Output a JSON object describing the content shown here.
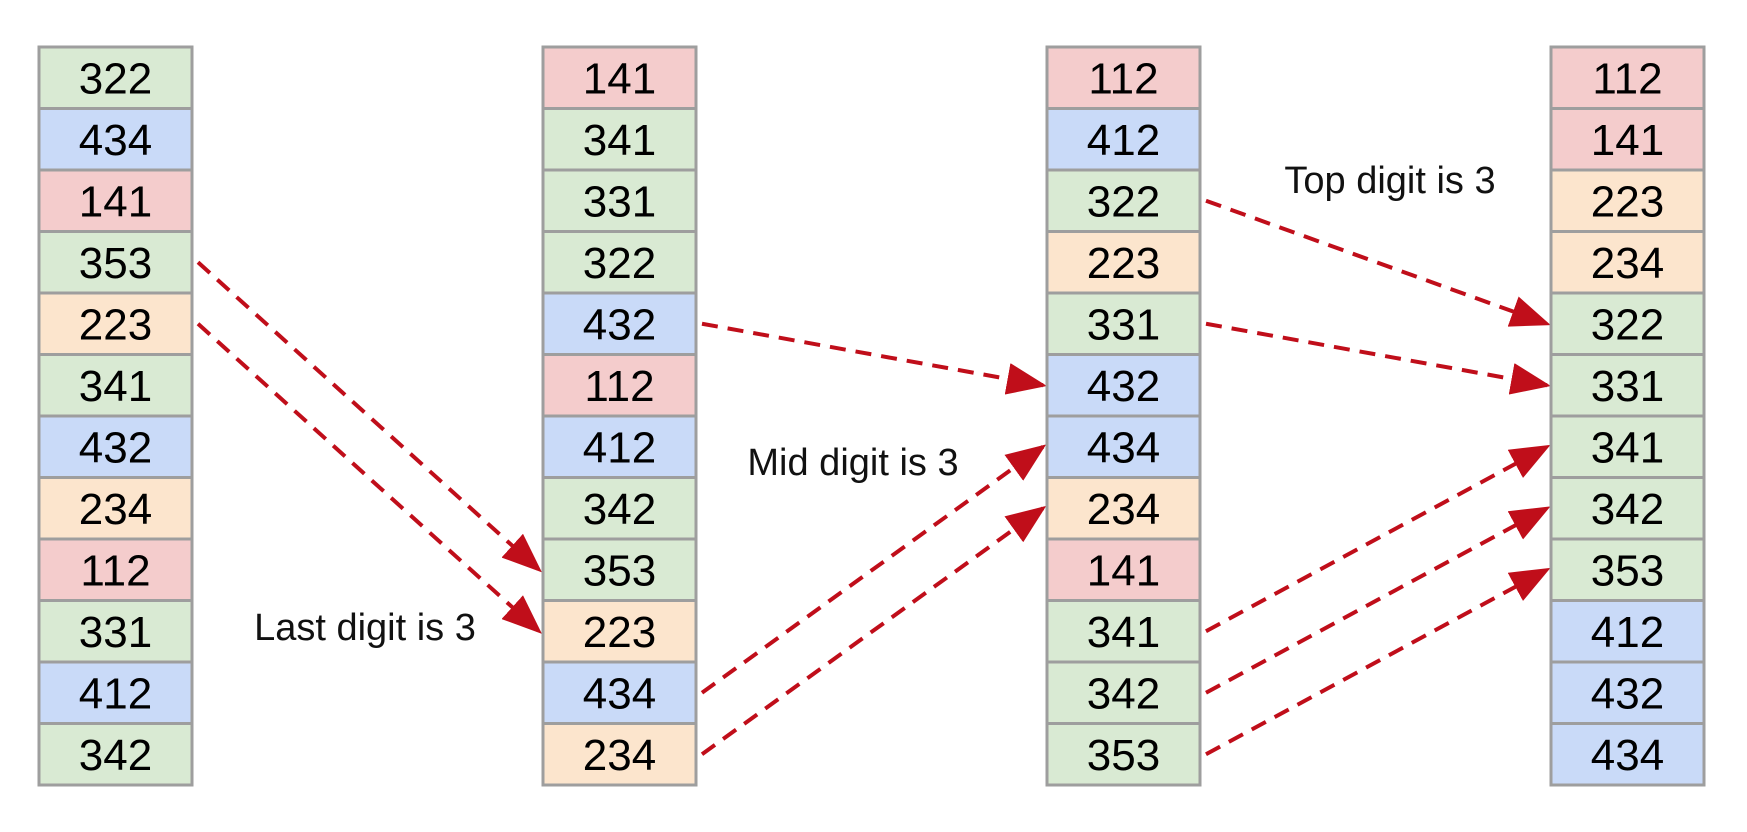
{
  "colors": {
    "green": "#d9ead3",
    "blue": "#c9daf8",
    "red": "#f4cccc",
    "orange": "#fce5cd",
    "border": "#9e9e9e",
    "arrow": "#c00e1a"
  },
  "columns": [
    {
      "name": "unsorted",
      "cells": [
        {
          "value": "322",
          "color": "green"
        },
        {
          "value": "434",
          "color": "blue"
        },
        {
          "value": "141",
          "color": "red"
        },
        {
          "value": "353",
          "color": "green"
        },
        {
          "value": "223",
          "color": "orange"
        },
        {
          "value": "341",
          "color": "green"
        },
        {
          "value": "432",
          "color": "blue"
        },
        {
          "value": "234",
          "color": "orange"
        },
        {
          "value": "112",
          "color": "red"
        },
        {
          "value": "331",
          "color": "green"
        },
        {
          "value": "412",
          "color": "blue"
        },
        {
          "value": "342",
          "color": "green"
        }
      ]
    },
    {
      "name": "after-last-digit",
      "cells": [
        {
          "value": "141",
          "color": "red"
        },
        {
          "value": "341",
          "color": "green"
        },
        {
          "value": "331",
          "color": "green"
        },
        {
          "value": "322",
          "color": "green"
        },
        {
          "value": "432",
          "color": "blue"
        },
        {
          "value": "112",
          "color": "red"
        },
        {
          "value": "412",
          "color": "blue"
        },
        {
          "value": "342",
          "color": "green"
        },
        {
          "value": "353",
          "color": "green"
        },
        {
          "value": "223",
          "color": "orange"
        },
        {
          "value": "434",
          "color": "blue"
        },
        {
          "value": "234",
          "color": "orange"
        }
      ]
    },
    {
      "name": "after-mid-digit",
      "cells": [
        {
          "value": "112",
          "color": "red"
        },
        {
          "value": "412",
          "color": "blue"
        },
        {
          "value": "322",
          "color": "green"
        },
        {
          "value": "223",
          "color": "orange"
        },
        {
          "value": "331",
          "color": "green"
        },
        {
          "value": "432",
          "color": "blue"
        },
        {
          "value": "434",
          "color": "blue"
        },
        {
          "value": "234",
          "color": "orange"
        },
        {
          "value": "141",
          "color": "red"
        },
        {
          "value": "341",
          "color": "green"
        },
        {
          "value": "342",
          "color": "green"
        },
        {
          "value": "353",
          "color": "green"
        }
      ]
    },
    {
      "name": "after-top-digit",
      "cells": [
        {
          "value": "112",
          "color": "red"
        },
        {
          "value": "141",
          "color": "red"
        },
        {
          "value": "223",
          "color": "orange"
        },
        {
          "value": "234",
          "color": "orange"
        },
        {
          "value": "322",
          "color": "green"
        },
        {
          "value": "331",
          "color": "green"
        },
        {
          "value": "341",
          "color": "green"
        },
        {
          "value": "342",
          "color": "green"
        },
        {
          "value": "353",
          "color": "green"
        },
        {
          "value": "412",
          "color": "blue"
        },
        {
          "value": "432",
          "color": "blue"
        },
        {
          "value": "434",
          "color": "blue"
        }
      ]
    }
  ],
  "arrows": [
    {
      "from": [
        0,
        3
      ],
      "to": [
        1,
        8
      ]
    },
    {
      "from": [
        0,
        4
      ],
      "to": [
        1,
        9
      ]
    },
    {
      "from": [
        1,
        4
      ],
      "to": [
        2,
        5
      ]
    },
    {
      "from": [
        1,
        10
      ],
      "to": [
        2,
        6
      ]
    },
    {
      "from": [
        1,
        11
      ],
      "to": [
        2,
        7
      ]
    },
    {
      "from": [
        2,
        2
      ],
      "to": [
        3,
        4
      ]
    },
    {
      "from": [
        2,
        4
      ],
      "to": [
        3,
        5
      ]
    },
    {
      "from": [
        2,
        9
      ],
      "to": [
        3,
        6
      ]
    },
    {
      "from": [
        2,
        10
      ],
      "to": [
        3,
        7
      ]
    },
    {
      "from": [
        2,
        11
      ],
      "to": [
        3,
        8
      ]
    }
  ],
  "annotations": {
    "last_digit": "Last digit is 3",
    "mid_digit": "Mid digit is 3",
    "top_digit": "Top digit is 3"
  }
}
